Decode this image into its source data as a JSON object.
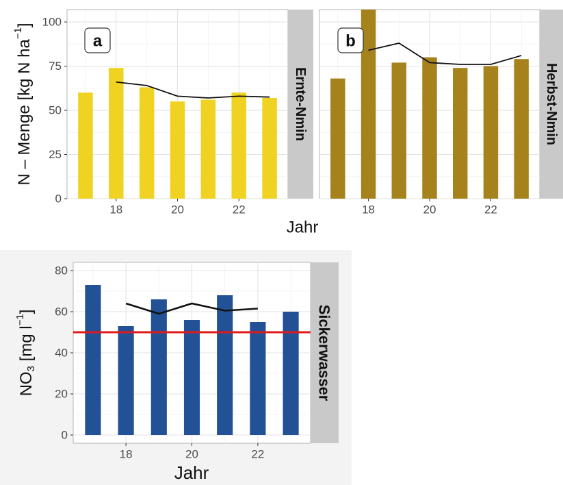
{
  "colors": {
    "ernte": "#f0d322",
    "herbst": "#a6821d",
    "sicker": "#235196",
    "threshold": "#e0191b",
    "line": "#111111",
    "strip": "#c9c9c9",
    "grid": "#e6e6e6"
  },
  "labels": {
    "top_ylabel": "N – Menge [kg N ha",
    "top_ylabel_sup": "−1",
    "top_ylabel_end": "]",
    "top_xlabel": "Jahr",
    "bottom_ylabel_main": "NO",
    "bottom_ylabel_sub": "3",
    "bottom_ylabel_unit": " [mg l",
    "bottom_ylabel_sup": "−1",
    "bottom_ylabel_end": "]",
    "bottom_xlabel": "Jahr"
  },
  "chart_data": [
    {
      "type": "bar",
      "panel": "a",
      "strip": "Ernte-Nmin",
      "x": [
        17,
        18,
        19,
        20,
        21,
        22,
        23
      ],
      "values": [
        60,
        74,
        63,
        55,
        56,
        60,
        57
      ],
      "line": {
        "x": [
          18,
          19,
          20,
          21,
          22,
          23
        ],
        "y": [
          66,
          64,
          58,
          57,
          58,
          57.5
        ]
      },
      "xticks": [
        18,
        20,
        22
      ],
      "xlim": [
        16.4,
        23.6
      ],
      "yticks": [
        0,
        25,
        50,
        75,
        100
      ],
      "ylim": [
        0,
        107
      ]
    },
    {
      "type": "bar",
      "panel": "b",
      "strip": "Herbst-Nmin",
      "x": [
        17,
        18,
        19,
        20,
        21,
        22,
        23
      ],
      "values": [
        68,
        107,
        77,
        80,
        74,
        75,
        79
      ],
      "line": {
        "x": [
          18,
          19,
          20,
          21,
          22,
          23
        ],
        "y": [
          84,
          88,
          77,
          76,
          76,
          81
        ]
      },
      "xticks": [
        18,
        20,
        22
      ],
      "xlim": [
        16.4,
        23.6
      ],
      "yticks": [
        0,
        25,
        50,
        75,
        100
      ],
      "ylim": [
        0,
        107
      ]
    },
    {
      "type": "bar",
      "strip": "Sickerwasser",
      "x": [
        17,
        18,
        19,
        20,
        21,
        22,
        23
      ],
      "values": [
        73,
        53,
        66,
        56,
        68,
        55,
        60
      ],
      "line": {
        "x": [
          18,
          19,
          20,
          21,
          22
        ],
        "y": [
          64,
          59,
          64,
          60.5,
          61.5
        ]
      },
      "threshold": 50,
      "xticks": [
        18,
        20,
        22
      ],
      "xlim": [
        16.4,
        23.6
      ],
      "yticks": [
        0,
        20,
        40,
        60,
        80
      ],
      "ylim": [
        -4,
        84
      ]
    }
  ]
}
